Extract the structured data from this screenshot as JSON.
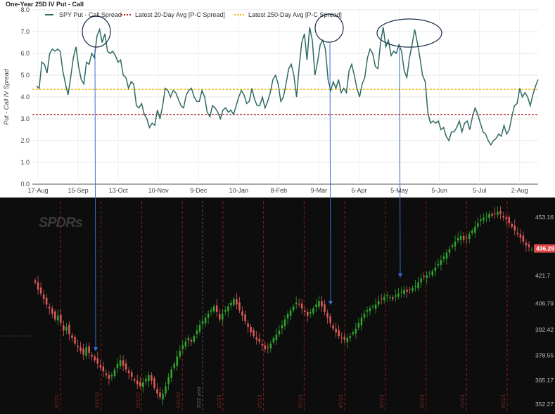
{
  "chart_data": [
    {
      "type": "line",
      "title": "One-Year 25D IV Put - Call",
      "ylabel": "Put - Call IV Spread",
      "ylim": [
        0,
        8
      ],
      "yticks": [
        "0.0",
        "1.0",
        "2.0",
        "3.0",
        "4.0",
        "5.0",
        "6.0",
        "7.0",
        "8.0"
      ],
      "xticks": [
        "17-Aug",
        "15-Sep",
        "13-Oct",
        "10-Nov",
        "9-Dec",
        "10-Jan",
        "8-Feb",
        "9-Mar",
        "6-Apr",
        "5-May",
        "5-Jun",
        "5-Jul",
        "2-Aug"
      ],
      "grid": true,
      "legend_position": "top",
      "series": [
        {
          "name": "SPY Put - Call Spread",
          "color": "#2e6b63",
          "values": [
            4.5,
            4.4,
            5.6,
            5.5,
            5.1,
            6.0,
            6.2,
            6.1,
            6.2,
            6.1,
            5.2,
            4.6,
            4.1,
            4.9,
            5.8,
            6.3,
            5.4,
            4.8,
            4.6,
            5.6,
            5.5,
            6.0,
            5.8,
            6.8,
            7.1,
            6.5,
            6.9,
            6.1,
            6.0,
            6.1,
            5.9,
            5.6,
            5.7,
            5.0,
            4.9,
            4.4,
            4.7,
            4.6,
            3.6,
            3.5,
            3.7,
            3.2,
            3.0,
            2.6,
            2.8,
            2.7,
            3.4,
            3.0,
            3.6,
            4.4,
            4.3,
            4.0,
            4.3,
            4.2,
            3.9,
            3.6,
            3.5,
            4.1,
            4.3,
            4.4,
            4.0,
            3.8,
            3.8,
            4.3,
            4.0,
            3.3,
            3.1,
            3.6,
            3.5,
            3.3,
            3.0,
            3.4,
            3.5,
            3.3,
            3.4,
            3.2,
            3.6,
            4.0,
            4.3,
            4.1,
            3.7,
            3.8,
            4.4,
            3.9,
            3.6,
            3.6,
            4.0,
            3.5,
            3.8,
            4.2,
            4.8,
            5.0,
            4.6,
            3.8,
            4.0,
            4.6,
            5.3,
            5.5,
            5.0,
            4.0,
            5.4,
            6.5,
            6.9,
            5.7,
            7.2,
            6.6,
            5.0,
            5.6,
            6.4,
            6.6,
            6.2,
            4.8,
            4.3,
            4.7,
            4.4,
            4.8,
            4.2,
            4.4,
            4.2,
            5.2,
            5.5,
            5.0,
            4.4,
            4.0,
            4.6,
            4.9,
            5.8,
            6.2,
            6.0,
            5.4,
            5.3,
            6.5,
            7.2,
            6.3,
            6.6,
            5.9,
            6.1,
            6.0,
            6.4,
            6.1,
            5.2,
            4.9,
            5.8,
            6.4,
            7.1,
            6.5,
            5.8,
            5.0,
            4.7,
            3.3,
            2.8,
            2.9,
            2.8,
            2.9,
            2.5,
            2.6,
            2.2,
            2.0,
            2.4,
            2.4,
            2.6,
            2.9,
            2.4,
            2.8,
            2.9,
            2.5,
            3.1,
            3.5,
            3.2,
            2.8,
            2.4,
            2.3,
            2.0,
            1.8,
            2.0,
            2.1,
            2.3,
            2.2,
            2.7,
            2.3,
            2.5,
            3.1,
            3.6,
            3.7,
            4.4,
            4.0,
            4.2,
            4.0,
            3.6,
            4.1,
            4.5,
            4.8
          ]
        },
        {
          "name": "Latest 20-Day Avg [P-C Spread]",
          "color": "#b22222",
          "value": 3.2,
          "style": "dotted"
        },
        {
          "name": "Latest 250-Day Avg [P-C Spread]",
          "color": "#f0b400",
          "value": 4.35,
          "style": "dotted"
        }
      ]
    },
    {
      "type": "candlestick",
      "logo": "SPDRs",
      "ylim": [
        350,
        460
      ],
      "price_ticks": [
        "453.16",
        "436.29",
        "421.7",
        "406.79",
        "392.42",
        "378.55",
        "365.17",
        "352.27"
      ],
      "last_price": "436.29",
      "year_marker": "2022 year",
      "month_markers": [
        "9/1/22",
        "10/1/22",
        "11/1/22",
        "12/1/22",
        "1/1/23",
        "2/1/23",
        "3/1/23",
        "4/1/23",
        "5/1/23",
        "6/1/23",
        "7/1/23",
        "8/1/23"
      ],
      "colors": {
        "up": "#2ea82e",
        "down": "#e05a5a",
        "grid": "#8b1a1a"
      },
      "closes": [
        418,
        414,
        412,
        409,
        406,
        404,
        401,
        398,
        400,
        396,
        392,
        394,
        390,
        388,
        385,
        383,
        381,
        379,
        383,
        380,
        378,
        376,
        374,
        372,
        370,
        368,
        366,
        368,
        371,
        374,
        376,
        373,
        371,
        369,
        367,
        365,
        363,
        362,
        364,
        366,
        368,
        365,
        361,
        358,
        356,
        358,
        362,
        367,
        371,
        374,
        378,
        381,
        384,
        386,
        388,
        386,
        389,
        392,
        395,
        397,
        399,
        401,
        403,
        405,
        402,
        398,
        401,
        403,
        405,
        407,
        409,
        406,
        403,
        400,
        397,
        394,
        391,
        389,
        387,
        386,
        384,
        382,
        383,
        385,
        388,
        390,
        392,
        395,
        398,
        401,
        403,
        405,
        407,
        406,
        404,
        402,
        400,
        402,
        404,
        406,
        408,
        405,
        402,
        399,
        396,
        393,
        391,
        389,
        388,
        387,
        388,
        389,
        391,
        393,
        396,
        399,
        401,
        403,
        404,
        405,
        406,
        408,
        409,
        410,
        411,
        410,
        409,
        411,
        412,
        413,
        414,
        413,
        414,
        415,
        416,
        418,
        420,
        421,
        422,
        423,
        424,
        426,
        428,
        430,
        432,
        434,
        436,
        438,
        440,
        442,
        443,
        441,
        442,
        444,
        446,
        448,
        450,
        452,
        453,
        454,
        455,
        454,
        455,
        456,
        455,
        453,
        452,
        450,
        448,
        446,
        444,
        442,
        440,
        438,
        437,
        436
      ]
    }
  ]
}
